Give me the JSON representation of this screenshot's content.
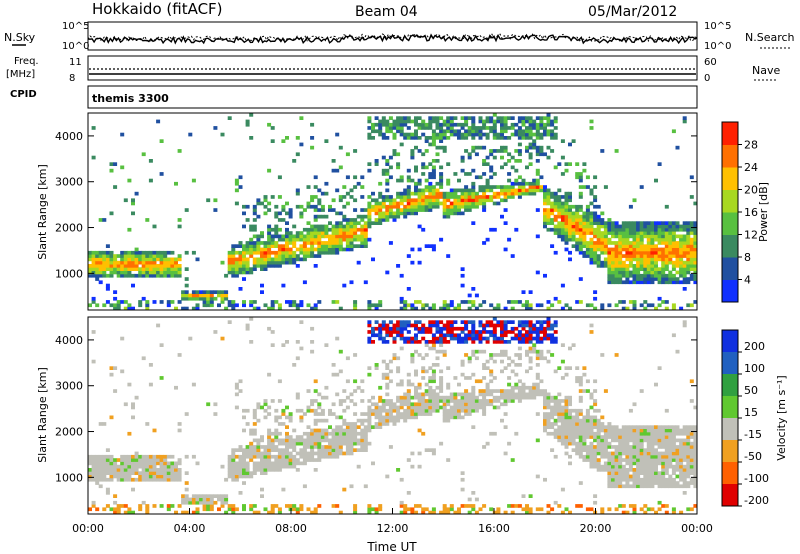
{
  "header": {
    "station": "Hokkaido (fitACF)",
    "beam": "Beam 04",
    "date": "05/Mar/2012"
  },
  "strip_labels": {
    "nsky": "N.Sky",
    "nsearch": "N.Search",
    "freq_line1": "Freq.",
    "freq_line2": "[MHz]",
    "nave": "Nave",
    "cpid": "CPID",
    "cpid_value": "themis 3300"
  },
  "strip_ticks": {
    "noise_left": [
      "10^5",
      "10^0"
    ],
    "noise_right": [
      "10^5",
      "10^0"
    ],
    "freq_left": [
      "11",
      "8"
    ],
    "nave_right": [
      "60",
      "0"
    ]
  },
  "chart_data": [
    {
      "type": "heatmap",
      "name": "power",
      "ylabel": "Slant Range [km]",
      "yticks": [
        1000,
        2000,
        3000,
        4000
      ],
      "ylim": [
        200,
        4500
      ],
      "colorbar": {
        "label": "Power [dB]",
        "ticks": [
          4,
          8,
          12,
          16,
          20,
          24,
          28
        ],
        "colors": [
          "#1030ff",
          "#2050a0",
          "#3a8a60",
          "#58c040",
          "#a8d820",
          "#ffc000",
          "#ff7000",
          "#ff2000"
        ],
        "range": [
          0,
          32
        ]
      }
    },
    {
      "type": "heatmap",
      "name": "velocity",
      "ylabel": "Slant Range [km]",
      "yticks": [
        1000,
        2000,
        3000,
        4000
      ],
      "ylim": [
        200,
        4500
      ],
      "xlabel": "Time UT",
      "xticks": [
        "00:00",
        "04:00",
        "08:00",
        "12:00",
        "16:00",
        "20:00",
        "00:00"
      ],
      "xlim_hours": [
        0,
        24
      ],
      "colorbar": {
        "label": "Velocity [m s⁻¹]",
        "ticks": [
          "200",
          "100",
          "50",
          "15",
          "-15",
          "-50",
          "-100",
          "-200"
        ],
        "colors": [
          "#1030e0",
          "#2060c0",
          "#30a040",
          "#60c830",
          "#c0c0b8",
          "#f0a020",
          "#ff6000",
          "#e00000"
        ]
      }
    }
  ]
}
